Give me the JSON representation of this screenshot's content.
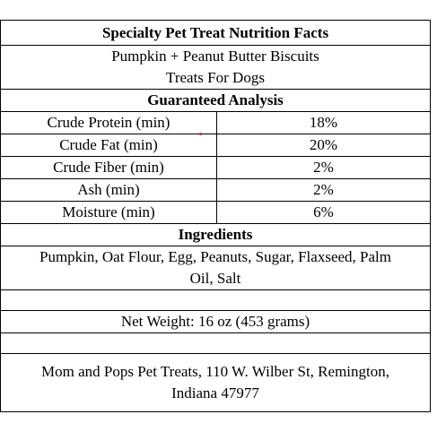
{
  "title": "Specialty Pet Treat Nutrition Facts",
  "product": {
    "line1": "Pumpkin + Peanut Butter Biscuits",
    "line2": "Treats For Dogs"
  },
  "analysis": {
    "heading": "Guaranteed Analysis",
    "rows": [
      {
        "label": "Crude Protein (min)",
        "value": "18%"
      },
      {
        "label": "Crude Fat (min)",
        "value": "20%"
      },
      {
        "label": "Crude Fiber (min)",
        "value": "2%"
      },
      {
        "label": "Ash (min)",
        "value": "2%"
      },
      {
        "label": "Moisture (min)",
        "value": "6%"
      }
    ]
  },
  "ingredients": {
    "heading": "Ingredients",
    "line1": "Pumpkin, Oat Flour, Egg, Peanuts, Sugar, Flaxseed, Palm",
    "line2": "Oil, Salt"
  },
  "net_weight": "Net Weight: 16 oz (453 grams)",
  "address": {
    "line1": "Mom and Pops Pet Treats, 110 W. Wilber St, Remington,",
    "line2": "Indiana 47977"
  },
  "colors": {
    "border": "#000000",
    "text": "#000000",
    "marker": "#e0192b"
  }
}
